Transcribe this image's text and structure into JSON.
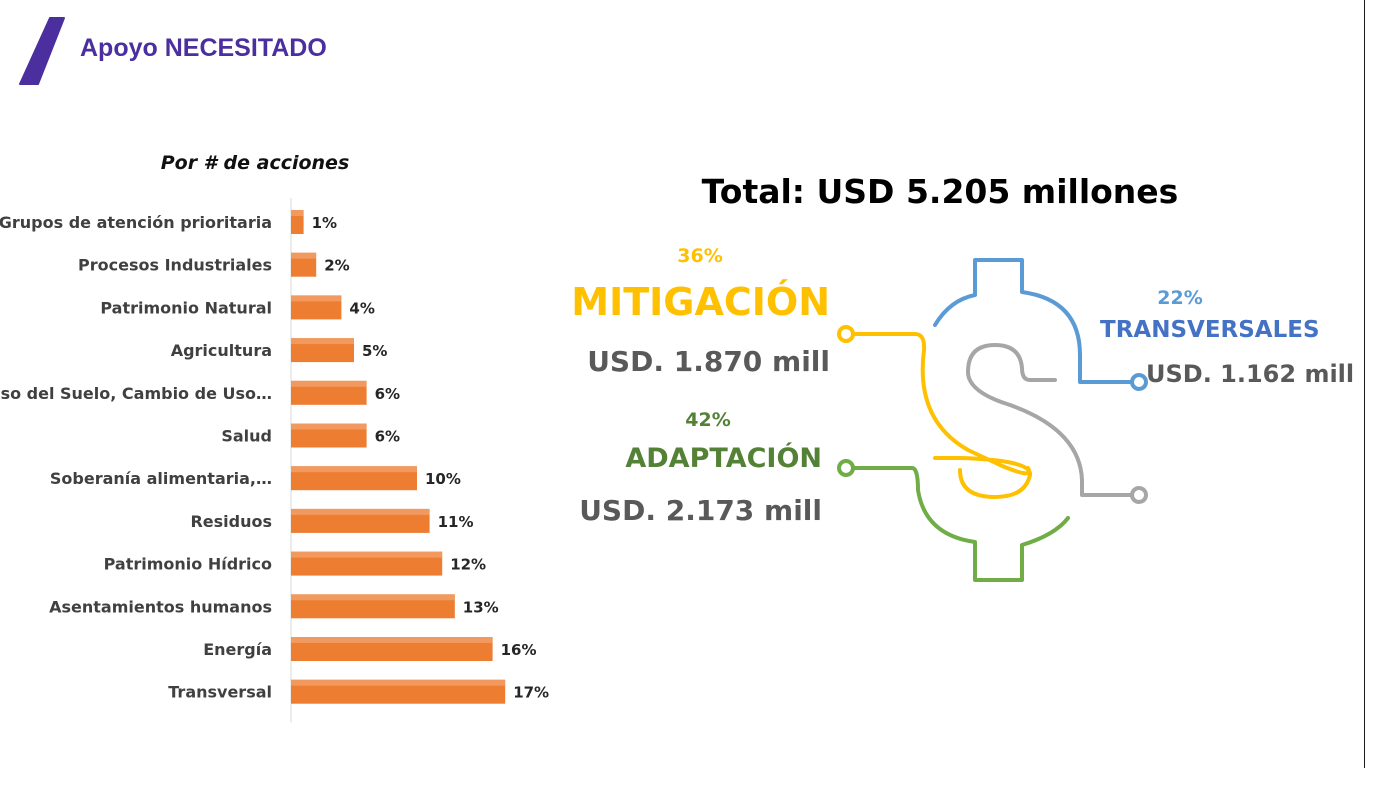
{
  "header": {
    "title": "Apoyo NECESITADO",
    "accent_color": "#4b2f9e"
  },
  "chart_data": [
    {
      "type": "bar",
      "orientation": "horizontal",
      "title": "Por # de acciones",
      "categories": [
        "Grupos de atención prioritaria",
        "Procesos Industriales",
        "Patrimonio Natural",
        "Agricultura",
        "Uso del Suelo, Cambio de Uso…",
        "Salud",
        "Soberanía alimentaria,…",
        "Residuos",
        "Patrimonio Hídrico",
        "Asentamientos humanos",
        "Energía",
        "Transversal"
      ],
      "values": [
        1,
        2,
        4,
        5,
        6,
        6,
        10,
        11,
        12,
        13,
        16,
        17
      ],
      "value_labels": [
        "1%",
        "2%",
        "4%",
        "5%",
        "6%",
        "6%",
        "10%",
        "11%",
        "12%",
        "13%",
        "16%",
        "17%"
      ],
      "unit": "%",
      "bar_color": "#ed7d31",
      "grid": false,
      "legend": "none"
    },
    {
      "type": "pie",
      "style": "dollar-sign infographic",
      "title": "Total: USD 5.205 millones",
      "slices": [
        {
          "label": "MITIGACIÓN",
          "percent": 36,
          "percent_label": "36%",
          "amount_label": "USD. 1.870 mill",
          "color": "#ffc000"
        },
        {
          "label": "ADAPTACIÓN",
          "percent": 42,
          "percent_label": "42%",
          "amount_label": "USD. 2.173 mill",
          "color": "#70ad47"
        },
        {
          "label": "TRANSVERSALES",
          "percent": 22,
          "percent_label": "22%",
          "amount_label": "USD. 1.162 mill",
          "color": "#5b9bd5"
        }
      ],
      "extra_line_color": "#a6a6a6"
    }
  ]
}
